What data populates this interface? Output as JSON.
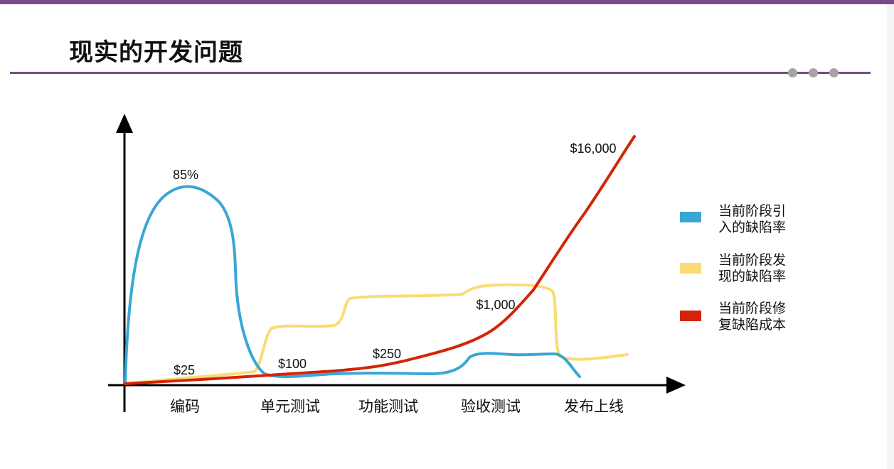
{
  "slide": {
    "title": "现实的开发问题",
    "accent_color": "#7a4a86"
  },
  "chart_data": {
    "type": "line",
    "title": "",
    "xlabel": "",
    "ylabel": "",
    "categories": [
      "编码",
      "单元测试",
      "功能测试",
      "验收测试",
      "发布上线"
    ],
    "series": [
      {
        "name": "当前阶段引入的缺陷率",
        "color": "#3aa6d6",
        "peak_label": "85%"
      },
      {
        "name": "当前阶段发现的缺陷率",
        "color": "#fbdb74"
      },
      {
        "name": "当前阶段修复缺陷成本",
        "color": "#d42407",
        "value_labels": [
          "$25",
          "$100",
          "$250",
          "$1,000",
          "$16,000"
        ]
      }
    ],
    "legend": {
      "position": "right",
      "lines": [
        [
          "当前阶段引",
          "入的缺陷率"
        ],
        [
          "当前阶段发",
          "现的缺陷率"
        ],
        [
          "当前阶段修",
          "复缺陷成本"
        ]
      ]
    },
    "grid": false,
    "y_ticks": false
  }
}
